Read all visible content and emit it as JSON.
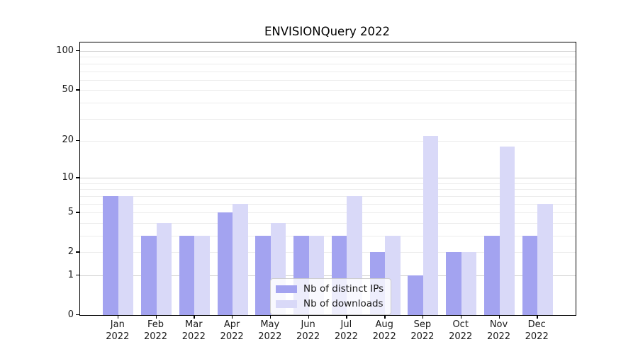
{
  "chart_data": {
    "type": "bar",
    "title": "ENVISIONQuery 2022",
    "categories": [
      "Jan",
      "Feb",
      "Mar",
      "Apr",
      "May",
      "Jun",
      "Jul",
      "Aug",
      "Sep",
      "Oct",
      "Nov",
      "Dec"
    ],
    "year_label": "2022",
    "series": [
      {
        "name": "Nb of distinct IPs",
        "color": "#a3a3f0",
        "values": [
          7,
          3,
          3,
          5,
          3,
          3,
          3,
          2,
          1,
          2,
          3,
          3
        ]
      },
      {
        "name": "Nb of downloads",
        "color": "#d9d9f8",
        "values": [
          7,
          4,
          3,
          6,
          4,
          3,
          7,
          3,
          22,
          2,
          18,
          6
        ]
      }
    ],
    "y_axis": {
      "scale": "log10(1+x)",
      "tick_labels": [
        0,
        1,
        2,
        5,
        10,
        20,
        50,
        100
      ],
      "major_gridlines": [
        1,
        10,
        100
      ],
      "minor_gridlines": [
        2,
        3,
        4,
        5,
        6,
        7,
        8,
        9,
        20,
        30,
        40,
        50,
        60,
        70,
        80,
        90
      ],
      "ylim_top_value": 115
    },
    "legend": {
      "position": "lower center"
    }
  }
}
